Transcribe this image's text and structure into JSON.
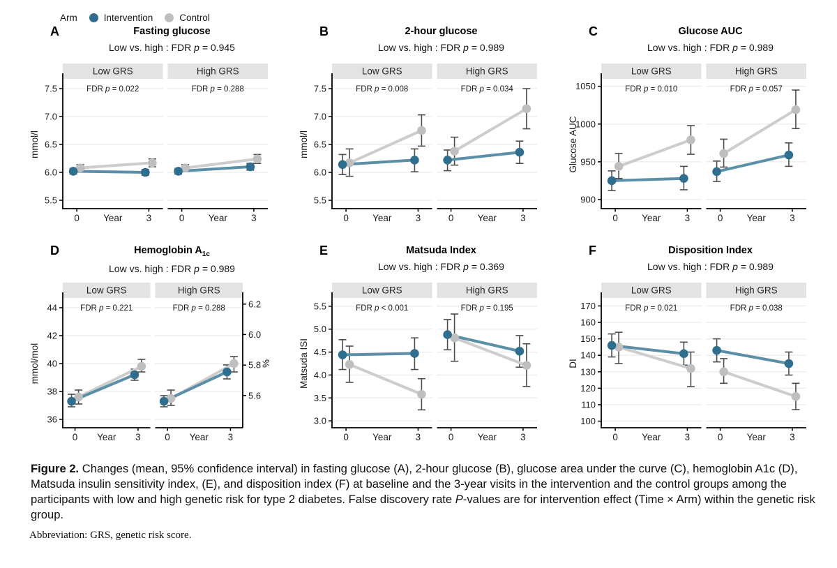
{
  "legend": {
    "label": "Arm",
    "items": [
      {
        "name": "Intervention",
        "color": "#2e6e8e"
      },
      {
        "name": "Control",
        "color": "#bfbfbf"
      }
    ]
  },
  "colors": {
    "intervention": "#2e6e8e",
    "intervention_line": "#5b8fa8",
    "control": "#bfbfbf",
    "control_line": "#cdcdcd",
    "errorbar": "#4d4d4d",
    "strip_bg": "#e3e3e3",
    "gridline": "#ececec",
    "axis": "#000000"
  },
  "x_axis": {
    "tick_labels": [
      "0",
      "3"
    ],
    "label": "Year",
    "values": [
      0,
      3
    ]
  },
  "chart_data": [
    {
      "type": "line",
      "letter": "A",
      "title": "Fasting glucose",
      "subtitle": "Low vs. high : FDR p = 0.945",
      "ylabel": "mmol/l",
      "ylim": [
        5.35,
        7.65
      ],
      "yticks": [
        5.5,
        6.0,
        6.5,
        7.0,
        7.5
      ],
      "ytick_labels": [
        "5.5",
        "6.0",
        "6.5",
        "7.0",
        "7.5"
      ],
      "facets": [
        {
          "label": "Low GRS",
          "fdr": "FDR p = 0.022",
          "series": [
            {
              "name": "Intervention",
              "x": [
                0,
                3
              ],
              "y": [
                6.02,
                6.0
              ],
              "lo": [
                5.97,
                5.95
              ],
              "hi": [
                6.07,
                6.05
              ]
            },
            {
              "name": "Control",
              "x": [
                0,
                3
              ],
              "y": [
                6.08,
                6.17
              ],
              "lo": [
                6.03,
                6.1
              ],
              "hi": [
                6.14,
                6.24
              ]
            }
          ]
        },
        {
          "label": "High GRS",
          "fdr": "FDR p = 0.288",
          "series": [
            {
              "name": "Intervention",
              "x": [
                0,
                3
              ],
              "y": [
                6.02,
                6.1
              ],
              "lo": [
                5.97,
                6.04
              ],
              "hi": [
                6.07,
                6.16
              ]
            },
            {
              "name": "Control",
              "x": [
                0,
                3
              ],
              "y": [
                6.08,
                6.24
              ],
              "lo": [
                6.02,
                6.16
              ],
              "hi": [
                6.14,
                6.32
              ]
            }
          ]
        }
      ]
    },
    {
      "type": "line",
      "letter": "B",
      "title": "2-hour glucose",
      "subtitle": "Low vs. high : FDR p = 0.989",
      "ylabel": "mmol/l",
      "ylim": [
        5.35,
        7.65
      ],
      "yticks": [
        5.5,
        6.0,
        6.5,
        7.0,
        7.5
      ],
      "ytick_labels": [
        "5.5",
        "6.0",
        "6.5",
        "7.0",
        "7.5"
      ],
      "facets": [
        {
          "label": "Low GRS",
          "fdr": "FDR p = 0.008",
          "series": [
            {
              "name": "Intervention",
              "x": [
                0,
                3
              ],
              "y": [
                6.14,
                6.22
              ],
              "lo": [
                5.96,
                6.01
              ],
              "hi": [
                6.32,
                6.42
              ]
            },
            {
              "name": "Control",
              "x": [
                0,
                3
              ],
              "y": [
                6.17,
                6.75
              ],
              "lo": [
                5.93,
                6.47
              ],
              "hi": [
                6.42,
                7.03
              ]
            }
          ]
        },
        {
          "label": "High GRS",
          "fdr": "FDR p = 0.034",
          "series": [
            {
              "name": "Intervention",
              "x": [
                0,
                3
              ],
              "y": [
                6.22,
                6.36
              ],
              "lo": [
                6.03,
                6.16
              ],
              "hi": [
                6.4,
                6.56
              ]
            },
            {
              "name": "Control",
              "x": [
                0,
                3
              ],
              "y": [
                6.38,
                7.14
              ],
              "lo": [
                6.13,
                6.78
              ],
              "hi": [
                6.63,
                7.5
              ]
            }
          ]
        }
      ]
    },
    {
      "type": "line",
      "letter": "C",
      "title": "Glucose AUC",
      "subtitle": "Low vs. high : FDR p = 0.989",
      "ylabel": "Glucose AUC",
      "ylim": [
        888,
        1058
      ],
      "yticks": [
        900,
        950,
        1000,
        1050
      ],
      "ytick_labels": [
        "900",
        "950",
        "1000",
        "1050"
      ],
      "facets": [
        {
          "label": "Low GRS",
          "fdr": "FDR p = 0.010",
          "series": [
            {
              "name": "Intervention",
              "x": [
                0,
                3
              ],
              "y": [
                925,
                928
              ],
              "lo": [
                912,
                913
              ],
              "hi": [
                938,
                944
              ]
            },
            {
              "name": "Control",
              "x": [
                0,
                3
              ],
              "y": [
                944,
                979
              ],
              "lo": [
                928,
                960
              ],
              "hi": [
                961,
                998
              ]
            }
          ]
        },
        {
          "label": "High GRS",
          "fdr": "FDR p = 0.057",
          "series": [
            {
              "name": "Intervention",
              "x": [
                0,
                3
              ],
              "y": [
                937,
                959
              ],
              "lo": [
                924,
                944
              ],
              "hi": [
                951,
                975
              ]
            },
            {
              "name": "Control",
              "x": [
                0,
                3
              ],
              "y": [
                961,
                1019
              ],
              "lo": [
                943,
                994
              ],
              "hi": [
                980,
                1045
              ]
            }
          ]
        }
      ]
    },
    {
      "type": "line",
      "letter": "D",
      "title": "Hemoglobin A",
      "title_sub": "1c",
      "subtitle": "Low vs. high : FDR p = 0.989",
      "ylabel": "mmol/mol",
      "ylim": [
        35.4,
        44.6
      ],
      "yticks": [
        36,
        38,
        40,
        42,
        44
      ],
      "ytick_labels": [
        "36",
        "38",
        "40",
        "42",
        "44"
      ],
      "right_axis": {
        "label": "%",
        "tick_labels": [
          "5.6",
          "5.8",
          "6.0",
          "6.2"
        ],
        "tick_positions": [
          37.71,
          39.89,
          42.08,
          44.26
        ]
      },
      "facets": [
        {
          "label": "Low GRS",
          "fdr": "FDR p = 0.221",
          "series": [
            {
              "name": "Intervention",
              "x": [
                0,
                3
              ],
              "y": [
                37.3,
                39.2
              ],
              "lo": [
                36.9,
                38.8
              ],
              "hi": [
                37.8,
                39.6
              ]
            },
            {
              "name": "Control",
              "x": [
                0,
                3
              ],
              "y": [
                37.6,
                39.8
              ],
              "lo": [
                37.1,
                39.4
              ],
              "hi": [
                38.1,
                40.3
              ]
            }
          ]
        },
        {
          "label": "High GRS",
          "fdr": "FDR p = 0.288",
          "series": [
            {
              "name": "Intervention",
              "x": [
                0,
                3
              ],
              "y": [
                37.3,
                39.4
              ],
              "lo": [
                36.9,
                38.9
              ],
              "hi": [
                37.7,
                39.9
              ]
            },
            {
              "name": "Control",
              "x": [
                0,
                3
              ],
              "y": [
                37.5,
                40.0
              ],
              "lo": [
                37.0,
                39.4
              ],
              "hi": [
                38.1,
                40.5
              ]
            }
          ]
        }
      ]
    },
    {
      "type": "line",
      "letter": "E",
      "title": "Matsuda Index",
      "subtitle": "Low vs. high : FDR p = 0.369",
      "ylabel": "Matsuda ISI",
      "ylim": [
        2.85,
        5.65
      ],
      "yticks": [
        3.0,
        3.5,
        4.0,
        4.5,
        5.0,
        5.5
      ],
      "ytick_labels": [
        "3.0",
        "3.5",
        "4.0",
        "4.5",
        "5.0",
        "5.5"
      ],
      "facets": [
        {
          "label": "Low GRS",
          "fdr": "FDR p < 0.001",
          "series": [
            {
              "name": "Intervention",
              "x": [
                0,
                3
              ],
              "y": [
                4.44,
                4.47
              ],
              "lo": [
                4.12,
                4.12
              ],
              "hi": [
                4.77,
                4.81
              ]
            },
            {
              "name": "Control",
              "x": [
                0,
                3
              ],
              "y": [
                4.23,
                3.58
              ],
              "lo": [
                3.84,
                3.24
              ],
              "hi": [
                4.63,
                3.92
              ]
            }
          ]
        },
        {
          "label": "High GRS",
          "fdr": "FDR p = 0.195",
          "series": [
            {
              "name": "Intervention",
              "x": [
                0,
                3
              ],
              "y": [
                4.88,
                4.52
              ],
              "lo": [
                4.55,
                4.17
              ],
              "hi": [
                5.21,
                4.86
              ]
            },
            {
              "name": "Control",
              "x": [
                0,
                3
              ],
              "y": [
                4.81,
                4.21
              ],
              "lo": [
                4.3,
                3.75
              ],
              "hi": [
                5.33,
                4.68
              ]
            }
          ]
        }
      ]
    },
    {
      "type": "line",
      "letter": "F",
      "title": "Disposition Index",
      "subtitle": "Low vs. high : FDR p = 0.989",
      "ylabel": "DI",
      "ylim": [
        96,
        174
      ],
      "yticks": [
        100,
        110,
        120,
        130,
        140,
        150,
        160,
        170
      ],
      "ytick_labels": [
        "100",
        "110",
        "120",
        "130",
        "140",
        "150",
        "160",
        "170"
      ],
      "facets": [
        {
          "label": "Low GRS",
          "fdr": "FDR p = 0.021",
          "series": [
            {
              "name": "Intervention",
              "x": [
                0,
                3
              ],
              "y": [
                146,
                141
              ],
              "lo": [
                139,
                134
              ],
              "hi": [
                153,
                148
              ]
            },
            {
              "name": "Control",
              "x": [
                0,
                3
              ],
              "y": [
                145,
                132
              ],
              "lo": [
                135,
                121
              ],
              "hi": [
                154,
                142
              ]
            }
          ]
        },
        {
          "label": "High GRS",
          "fdr": "FDR p = 0.038",
          "series": [
            {
              "name": "Intervention",
              "x": [
                0,
                3
              ],
              "y": [
                143,
                135
              ],
              "lo": [
                136,
                128
              ],
              "hi": [
                150,
                142
              ]
            },
            {
              "name": "Control",
              "x": [
                0,
                3
              ],
              "y": [
                130,
                115
              ],
              "lo": [
                123,
                107
              ],
              "hi": [
                138,
                123
              ]
            }
          ]
        }
      ]
    }
  ],
  "caption": {
    "label": "Figure 2.",
    "text": "Changes (mean, 95% confidence interval) in fasting glucose (A), 2-hour glucose (B), glucose area under the curve (C), hemoglobin A1c (D), Matsuda insulin sensitivity index, (E), and disposition index (F) at baseline and the 3-year visits in the intervention and the control groups among the participants with low and high genetic risk for type 2 diabetes. False discovery rate P-values are for intervention effect (Time × Arm) within the genetic risk group."
  },
  "abbreviation": "Abbreviation: GRS, genetic risk score."
}
